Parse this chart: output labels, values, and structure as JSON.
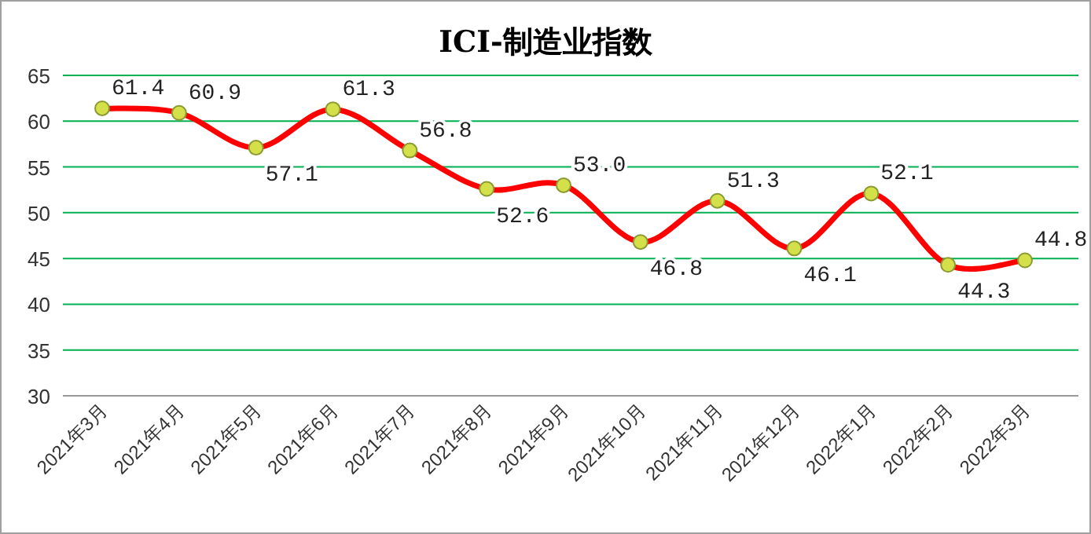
{
  "chart_data": {
    "type": "line",
    "title": "ICI-制造业指数",
    "categories": [
      "2021年3月",
      "2021年4月",
      "2021年5月",
      "2021年6月",
      "2021年7月",
      "2021年8月",
      "2021年9月",
      "2021年10月",
      "2021年11月",
      "2021年12月",
      "2022年1月",
      "2022年2月",
      "2022年3月"
    ],
    "series": [
      {
        "color": "#ff0000",
        "values": [
          61.4,
          60.9,
          57.1,
          61.3,
          56.8,
          52.6,
          53.0,
          46.8,
          51.3,
          46.1,
          52.1,
          44.3,
          44.8
        ],
        "value_labels": [
          "61.4",
          "60.9",
          "57.1",
          "61.3",
          "56.8",
          "52.6",
          "53.0",
          "46.8",
          "51.3",
          "46.1",
          "52.1",
          "44.3",
          "44.8"
        ]
      }
    ],
    "ylim": [
      30,
      65
    ],
    "yticks": [
      30,
      35,
      40,
      45,
      50,
      55,
      60,
      65
    ],
    "grid": "y",
    "marker": "circle",
    "line_style": "solid"
  }
}
